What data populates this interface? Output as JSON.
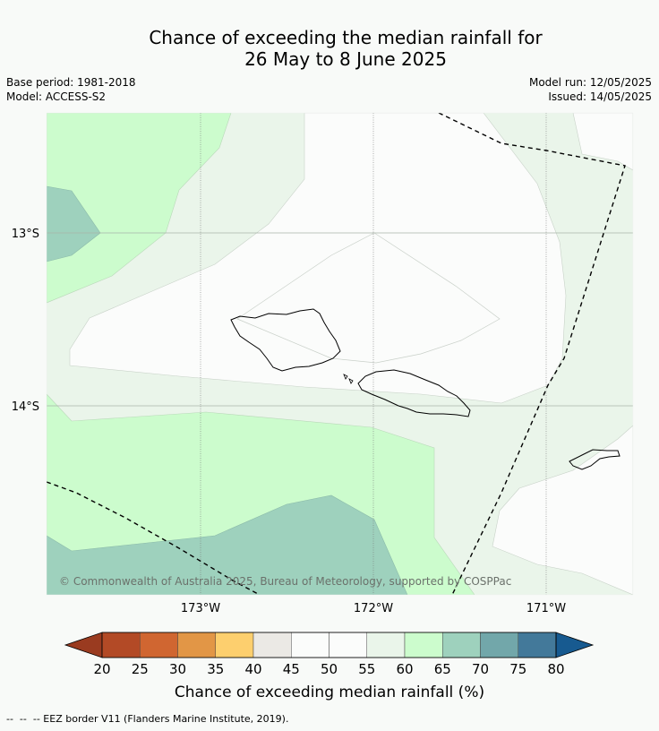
{
  "title_line1": "Chance of exceeding the median rainfall for",
  "title_line2": "26 May to 8 June 2025",
  "base_period": "Base period: 1981-2018",
  "model": "Model: ACCESS-S2",
  "model_run": "Model run: 12/05/2025",
  "issued": "Issued: 14/05/2025",
  "lat_labels": [
    "13°S",
    "14°S"
  ],
  "lon_labels": [
    "173°W",
    "172°W",
    "171°W"
  ],
  "copyright": "© Commonwealth of Australia 2025, Bureau of Meteorology, supported by COSPPac",
  "colorbar": {
    "title": "Chance of exceeding median rainfall (%)",
    "ticks": [
      "20",
      "25",
      "30",
      "35",
      "40",
      "45",
      "50",
      "55",
      "60",
      "65",
      "70",
      "75",
      "80"
    ],
    "low_color": "#9a3b20",
    "high_color": "#175a90",
    "colors": [
      "#b34a26",
      "#d06631",
      "#e29646",
      "#fdcf6e",
      "#ebe9e5",
      "#fbfcfb",
      "#fbfcfb",
      "#eaf5ea",
      "#ccfccd",
      "#9ed1bd",
      "#72a7aa",
      "#43799a"
    ]
  },
  "zone_colors": {
    "c50": "#fbfcfb",
    "c55": "#eaf5ea",
    "c60": "#ccfccd",
    "c65": "#9ed1bd"
  },
  "footer": "--  --  -- EEZ border V11 (Flanders Marine Institute, 2019)."
}
